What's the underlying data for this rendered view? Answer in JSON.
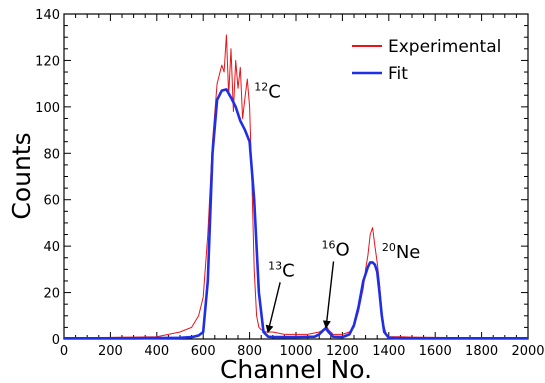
{
  "chart_data": {
    "type": "line",
    "title": "",
    "xlabel": "Channel No.",
    "ylabel": "Counts",
    "xlim": [
      0,
      2000
    ],
    "ylim": [
      0,
      140
    ],
    "x_ticks": [
      0,
      200,
      400,
      600,
      800,
      1000,
      1200,
      1400,
      1600,
      1800,
      2000
    ],
    "y_ticks": [
      0,
      20,
      40,
      60,
      80,
      100,
      120,
      140
    ],
    "grid": false,
    "legend_position": "top-right",
    "series": [
      {
        "name": "Experimental",
        "color": "#e8141a",
        "x": [
          0,
          100,
          200,
          300,
          400,
          450,
          500,
          550,
          580,
          600,
          620,
          640,
          660,
          680,
          690,
          700,
          710,
          720,
          730,
          740,
          750,
          760,
          770,
          780,
          790,
          800,
          810,
          820,
          830,
          840,
          850,
          870,
          900,
          950,
          1000,
          1050,
          1100,
          1120,
          1130,
          1140,
          1160,
          1200,
          1230,
          1250,
          1270,
          1290,
          1300,
          1310,
          1320,
          1330,
          1340,
          1350,
          1360,
          1370,
          1380,
          1390,
          1400,
          1450,
          1500,
          1600,
          1700,
          1800,
          1900,
          2000
        ],
        "y": [
          0.5,
          0.5,
          0.7,
          0.8,
          1,
          2,
          3,
          5,
          10,
          18,
          45,
          85,
          110,
          118,
          115,
          131,
          105,
          125,
          98,
          120,
          108,
          117,
          95,
          104,
          112,
          100,
          68,
          30,
          10,
          5,
          4,
          3,
          3,
          2,
          2,
          2,
          3,
          4,
          6,
          4,
          2,
          2,
          3,
          5,
          12,
          22,
          30,
          36,
          45,
          48,
          40,
          33,
          24,
          12,
          5,
          2,
          1,
          1,
          0.8,
          0.7,
          0.6,
          0.5,
          0.5,
          0.5
        ]
      },
      {
        "name": "Fit",
        "color": "#1f2fe6",
        "x": [
          0,
          100,
          200,
          300,
          400,
          500,
          550,
          580,
          600,
          620,
          640,
          660,
          680,
          700,
          720,
          740,
          760,
          780,
          800,
          820,
          840,
          860,
          880,
          900,
          1000,
          1080,
          1100,
          1120,
          1130,
          1140,
          1160,
          1200,
          1230,
          1250,
          1270,
          1290,
          1310,
          1320,
          1330,
          1340,
          1350,
          1360,
          1370,
          1380,
          1400,
          1450,
          1500,
          1600,
          1800,
          2000
        ],
        "y": [
          0.3,
          0.3,
          0.3,
          0.3,
          0.4,
          0.5,
          0.8,
          1.5,
          3,
          25,
          80,
          103,
          107,
          107.5,
          104,
          100,
          94,
          90,
          85,
          60,
          20,
          3,
          1,
          0.8,
          0.8,
          1,
          2,
          4,
          4.5,
          3,
          1,
          0.8,
          2,
          6,
          14,
          25,
          31,
          33,
          33,
          32,
          29,
          20,
          10,
          3,
          0.5,
          0.3,
          0.3,
          0.3,
          0.3,
          0.3
        ]
      }
    ],
    "annotations": [
      {
        "base": "C",
        "sup": "12",
        "x": 820,
        "y": 104
      },
      {
        "base": "C",
        "sup": "13",
        "x": 880,
        "y": 27,
        "arrow_to": [
          880,
          2
        ]
      },
      {
        "base": "O",
        "sup": "16",
        "x": 1110,
        "y": 36,
        "arrow_to": [
          1130,
          4
        ]
      },
      {
        "base": "Ne",
        "sup": "20",
        "x": 1370,
        "y": 35
      }
    ]
  }
}
